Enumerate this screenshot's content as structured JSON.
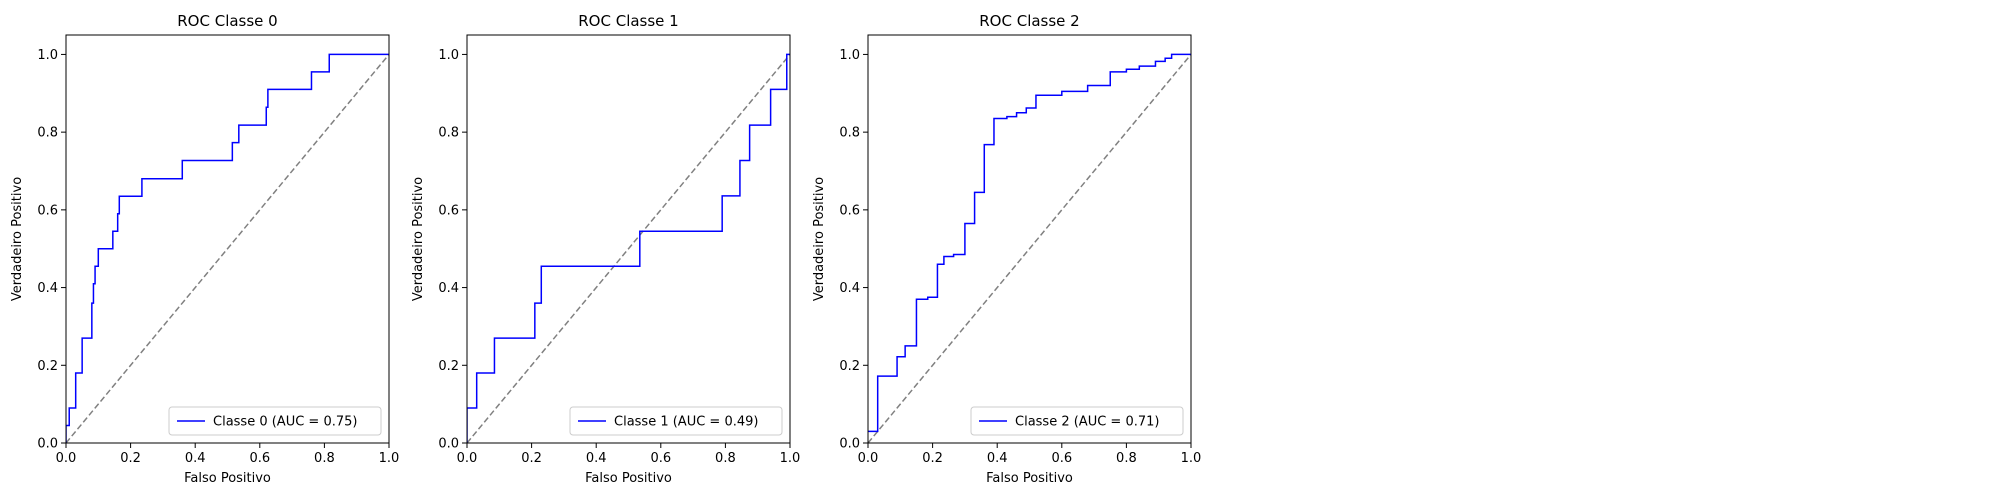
{
  "chart_data": [
    {
      "type": "line",
      "title": "ROC Classe 0",
      "xlabel": "Falso Positivo",
      "ylabel": "Verdadeiro Positivo",
      "xlim": [
        0,
        1
      ],
      "ylim": [
        0,
        1.05
      ],
      "xticks": [
        "0.0",
        "0.2",
        "0.4",
        "0.6",
        "0.8",
        "1.0"
      ],
      "yticks": [
        "0.0",
        "0.2",
        "0.4",
        "0.6",
        "0.8",
        "1.0"
      ],
      "grid": false,
      "legend_position": "lower-right",
      "diagonal": {
        "x": [
          0,
          1
        ],
        "y": [
          0,
          1
        ],
        "color": "#808080",
        "style": "dashed"
      },
      "series": [
        {
          "name": "Classe 0 (AUC = 0.75)",
          "color": "#0000ff",
          "x": [
            0,
            0,
            0.01,
            0.01,
            0.03,
            0.03,
            0.05,
            0.05,
            0.08,
            0.08,
            0.085,
            0.085,
            0.09,
            0.09,
            0.1,
            0.1,
            0.11,
            0.11,
            0.145,
            0.145,
            0.16,
            0.16,
            0.165,
            0.165,
            0.235,
            0.235,
            0.36,
            0.36,
            0.515,
            0.515,
            0.535,
            0.535,
            0.62,
            0.62,
            0.625,
            0.625,
            0.76,
            0.76,
            0.815,
            0.815,
            1.0
          ],
          "y": [
            0,
            0.045,
            0.045,
            0.09,
            0.09,
            0.18,
            0.18,
            0.27,
            0.27,
            0.36,
            0.36,
            0.41,
            0.41,
            0.455,
            0.455,
            0.5,
            0.5,
            0.5,
            0.5,
            0.545,
            0.545,
            0.59,
            0.59,
            0.635,
            0.635,
            0.68,
            0.68,
            0.727,
            0.727,
            0.773,
            0.773,
            0.818,
            0.818,
            0.864,
            0.864,
            0.91,
            0.91,
            0.955,
            0.955,
            1.0,
            1.0
          ]
        }
      ]
    },
    {
      "type": "line",
      "title": "ROC Classe 1",
      "xlabel": "Falso Positivo",
      "ylabel": "Verdadeiro Positivo",
      "xlim": [
        0,
        1
      ],
      "ylim": [
        0,
        1.05
      ],
      "xticks": [
        "0.0",
        "0.2",
        "0.4",
        "0.6",
        "0.8",
        "1.0"
      ],
      "yticks": [
        "0.0",
        "0.2",
        "0.4",
        "0.6",
        "0.8",
        "1.0"
      ],
      "grid": false,
      "legend_position": "lower-right",
      "diagonal": {
        "x": [
          0,
          1
        ],
        "y": [
          0,
          1
        ],
        "color": "#808080",
        "style": "dashed"
      },
      "series": [
        {
          "name": "Classe 1 (AUC = 0.49)",
          "color": "#0000ff",
          "x": [
            0,
            0,
            0.03,
            0.03,
            0.085,
            0.085,
            0.21,
            0.21,
            0.23,
            0.23,
            0.535,
            0.535,
            0.79,
            0.79,
            0.845,
            0.845,
            0.875,
            0.875,
            0.94,
            0.94,
            0.99,
            0.99,
            1.0
          ],
          "y": [
            0,
            0.09,
            0.09,
            0.18,
            0.18,
            0.27,
            0.27,
            0.36,
            0.36,
            0.455,
            0.455,
            0.545,
            0.545,
            0.636,
            0.636,
            0.727,
            0.727,
            0.818,
            0.818,
            0.91,
            0.91,
            1.0,
            1.0
          ]
        }
      ]
    },
    {
      "type": "line",
      "title": "ROC Classe 2",
      "xlabel": "Falso Positivo",
      "ylabel": "Verdadeiro Positivo",
      "xlim": [
        0,
        1
      ],
      "ylim": [
        0,
        1.05
      ],
      "xticks": [
        "0.0",
        "0.2",
        "0.4",
        "0.6",
        "0.8",
        "1.0"
      ],
      "yticks": [
        "0.0",
        "0.2",
        "0.4",
        "0.6",
        "0.8",
        "1.0"
      ],
      "grid": false,
      "legend_position": "lower-right",
      "diagonal": {
        "x": [
          0,
          1
        ],
        "y": [
          0,
          1
        ],
        "color": "#808080",
        "style": "dashed"
      },
      "series": [
        {
          "name": "Classe 2 (AUC = 0.71)",
          "color": "#0000ff",
          "x": [
            0,
            0.03,
            0.03,
            0.09,
            0.09,
            0.115,
            0.115,
            0.15,
            0.15,
            0.185,
            0.185,
            0.215,
            0.215,
            0.235,
            0.235,
            0.265,
            0.265,
            0.3,
            0.3,
            0.33,
            0.33,
            0.36,
            0.36,
            0.39,
            0.39,
            0.43,
            0.43,
            0.46,
            0.46,
            0.49,
            0.49,
            0.52,
            0.52,
            0.6,
            0.6,
            0.68,
            0.68,
            0.75,
            0.75,
            0.8,
            0.8,
            0.84,
            0.84,
            0.89,
            0.89,
            0.92,
            0.92,
            0.94,
            0.94,
            0.97,
            0.97,
            1.0
          ],
          "y": [
            0.03,
            0.03,
            0.172,
            0.172,
            0.222,
            0.222,
            0.25,
            0.25,
            0.37,
            0.37,
            0.375,
            0.375,
            0.46,
            0.46,
            0.48,
            0.48,
            0.485,
            0.485,
            0.565,
            0.565,
            0.645,
            0.645,
            0.768,
            0.768,
            0.835,
            0.835,
            0.84,
            0.84,
            0.85,
            0.85,
            0.862,
            0.862,
            0.895,
            0.895,
            0.905,
            0.905,
            0.92,
            0.92,
            0.955,
            0.955,
            0.962,
            0.962,
            0.97,
            0.97,
            0.982,
            0.982,
            0.99,
            0.99,
            1.0,
            1.0,
            1.0,
            1.0
          ]
        }
      ]
    }
  ]
}
